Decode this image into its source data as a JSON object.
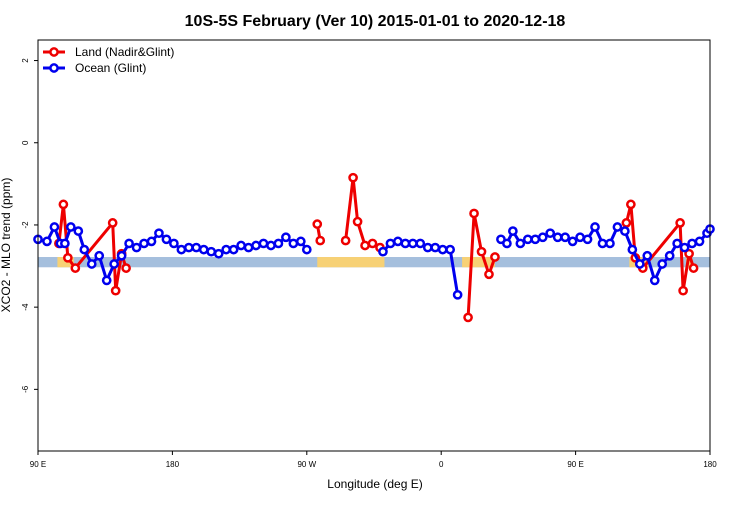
{
  "chart_data": {
    "type": "line",
    "title": "10S-5S February (Ver 10)   2015-01-01 to 2020-12-18",
    "xlabel": "Longitude (deg E)",
    "ylabel": "XCO2 - MLO trend (ppm)",
    "xlim": [
      90,
      540
    ],
    "ylim": [
      -7.5,
      2.5
    ],
    "x_ticks": [
      {
        "value": 90,
        "label": "90 E"
      },
      {
        "value": 180,
        "label": "180"
      },
      {
        "value": 270,
        "label": "90 W"
      },
      {
        "value": 360,
        "label": "0"
      },
      {
        "value": 450,
        "label": "90 E"
      },
      {
        "value": 540,
        "label": "180"
      }
    ],
    "y_ticks": [
      {
        "value": 2,
        "label": "2"
      },
      {
        "value": 0,
        "label": "0"
      },
      {
        "value": -2,
        "label": "-2"
      },
      {
        "value": -4,
        "label": "-4"
      },
      {
        "value": -6,
        "label": "-6"
      }
    ],
    "grid": false,
    "legend_position": "top-left",
    "bands": [
      {
        "name": "ocean",
        "color": "#a5bfdd",
        "y_range": [
          -3.03,
          -2.78
        ],
        "x_ranges": [
          [
            90,
            540
          ]
        ]
      },
      {
        "name": "land",
        "color": "#f7d175",
        "y_range": [
          -3.03,
          -2.78
        ],
        "x_ranges": [
          [
            103,
            114
          ],
          [
            277,
            322
          ],
          [
            374,
            396
          ],
          [
            486,
            500
          ],
          [
            524,
            528
          ]
        ]
      }
    ],
    "series": [
      {
        "name": "Land (Nadir&Glint)",
        "color": "#ee0000",
        "segments": [
          [
            [
              104,
              -2.45
            ],
            [
              107,
              -1.5
            ],
            [
              110,
              -2.8
            ],
            [
              115,
              -3.05
            ],
            [
              140,
              -1.95
            ],
            [
              142,
              -3.6
            ],
            [
              146,
              -2.7
            ],
            [
              149,
              -3.05
            ]
          ],
          [
            [
              277,
              -1.98
            ],
            [
              279,
              -2.38
            ]
          ],
          [
            [
              296,
              -2.38
            ],
            [
              301,
              -0.85
            ],
            [
              304,
              -1.92
            ],
            [
              309,
              -2.5
            ],
            [
              314,
              -2.45
            ],
            [
              319,
              -2.55
            ]
          ],
          [
            [
              378,
              -4.25
            ],
            [
              382,
              -1.72
            ],
            [
              387,
              -2.65
            ],
            [
              392,
              -3.2
            ],
            [
              396,
              -2.78
            ]
          ],
          [
            [
              484,
              -1.95
            ],
            [
              487,
              -1.5
            ],
            [
              490,
              -2.8
            ],
            [
              495,
              -3.05
            ],
            [
              520,
              -1.95
            ],
            [
              522,
              -3.6
            ],
            [
              526,
              -2.7
            ],
            [
              529,
              -3.05
            ]
          ]
        ]
      },
      {
        "name": "Ocean (Glint)",
        "color": "#0000ee",
        "segments": [
          [
            [
              90,
              -2.35
            ],
            [
              96,
              -2.4
            ],
            [
              101,
              -2.05
            ],
            [
              105,
              -2.45
            ],
            [
              108,
              -2.45
            ],
            [
              112,
              -2.05
            ],
            [
              117,
              -2.15
            ],
            [
              121,
              -2.6
            ],
            [
              126,
              -2.95
            ],
            [
              131,
              -2.75
            ],
            [
              136,
              -3.35
            ],
            [
              141,
              -2.95
            ],
            [
              146,
              -2.75
            ],
            [
              151,
              -2.45
            ],
            [
              156,
              -2.55
            ],
            [
              161,
              -2.45
            ],
            [
              166,
              -2.4
            ],
            [
              171,
              -2.2
            ],
            [
              176,
              -2.35
            ],
            [
              181,
              -2.45
            ],
            [
              186,
              -2.6
            ],
            [
              191,
              -2.55
            ],
            [
              196,
              -2.55
            ],
            [
              201,
              -2.6
            ],
            [
              206,
              -2.65
            ],
            [
              211,
              -2.7
            ],
            [
              216,
              -2.6
            ],
            [
              221,
              -2.6
            ],
            [
              226,
              -2.5
            ],
            [
              231,
              -2.55
            ],
            [
              236,
              -2.5
            ],
            [
              241,
              -2.45
            ],
            [
              246,
              -2.5
            ],
            [
              251,
              -2.45
            ],
            [
              256,
              -2.3
            ],
            [
              261,
              -2.45
            ],
            [
              266,
              -2.4
            ],
            [
              270,
              -2.6
            ]
          ],
          [
            [
              321,
              -2.65
            ],
            [
              326,
              -2.45
            ],
            [
              331,
              -2.4
            ],
            [
              336,
              -2.45
            ],
            [
              341,
              -2.45
            ],
            [
              346,
              -2.45
            ],
            [
              351,
              -2.55
            ],
            [
              356,
              -2.55
            ],
            [
              361,
              -2.6
            ],
            [
              366,
              -2.6
            ],
            [
              371,
              -3.7
            ]
          ],
          [
            [
              400,
              -2.35
            ],
            [
              404,
              -2.45
            ],
            [
              408,
              -2.15
            ],
            [
              413,
              -2.45
            ],
            [
              418,
              -2.35
            ],
            [
              423,
              -2.35
            ],
            [
              428,
              -2.3
            ],
            [
              433,
              -2.2
            ],
            [
              438,
              -2.3
            ],
            [
              443,
              -2.3
            ],
            [
              448,
              -2.4
            ],
            [
              453,
              -2.3
            ],
            [
              458,
              -2.35
            ],
            [
              463,
              -2.05
            ],
            [
              468,
              -2.45
            ],
            [
              473,
              -2.45
            ],
            [
              478,
              -2.05
            ],
            [
              483,
              -2.15
            ],
            [
              488,
              -2.6
            ],
            [
              493,
              -2.95
            ],
            [
              498,
              -2.75
            ],
            [
              503,
              -3.35
            ],
            [
              508,
              -2.95
            ],
            [
              513,
              -2.75
            ],
            [
              518,
              -2.45
            ],
            [
              523,
              -2.55
            ],
            [
              528,
              -2.45
            ],
            [
              533,
              -2.4
            ],
            [
              538,
              -2.2
            ],
            [
              540,
              -2.1
            ]
          ]
        ]
      }
    ]
  }
}
